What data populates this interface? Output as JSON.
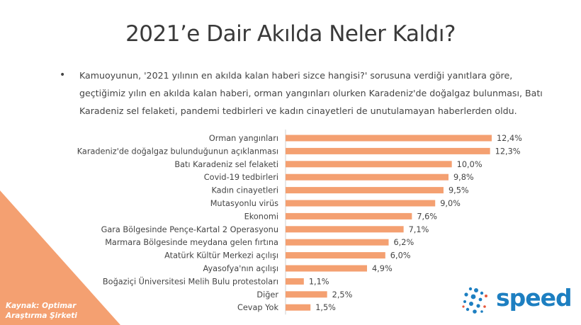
{
  "title": "2021’e Dair Akılda Neler Kaldı?",
  "bullet": "Kamuoyunun, '2021 yılının en akılda kalan haberi sizce hangisi?' sorusuna verdiği yanıtlara göre, geçtiğimiz yılın en akılda kalan haberi, orman yangınları olurken Karadeniz'de doğalgaz bulunması, Batı Karadeniz sel felaketi, pandemi tedbirleri ve kadın cinayetleri de unutulamayan haberlerden oldu.",
  "source_line1": "Kaynak: Optimar",
  "source_line2": "Araştırma Şirketi",
  "logo_text": "speed",
  "colors": {
    "bar": "#f4a071",
    "corner": "#f4a071",
    "logo": "#1d7fc1"
  },
  "chart_data": {
    "type": "bar",
    "orientation": "horizontal",
    "categories": [
      "Orman yangınları",
      "Karadeniz'de doğalgaz bulunduğunun açıklanması",
      "Batı Karadeniz sel felaketi",
      "Covid-19 tedbirleri",
      "Kadın cinayetleri",
      "Mutasyonlu virüs",
      "Ekonomi",
      "Gara Bölgesinde Pençe-Kartal 2 Operasyonu",
      "Marmara Bölgesinde meydana gelen fırtına",
      "Atatürk Kültür Merkezi açılışı",
      "Ayasofya'nın açılışı",
      "Boğaziçi Üniversitesi Melih Bulu protestoları",
      "Diğer",
      "Cevap Yok"
    ],
    "values": [
      12.4,
      12.3,
      10.0,
      9.8,
      9.5,
      9.0,
      7.6,
      7.1,
      6.2,
      6.0,
      4.9,
      1.1,
      2.5,
      1.5
    ],
    "value_labels": [
      "12,4%",
      "12,3%",
      "10,0%",
      "9,8%",
      "9,5%",
      "9,0%",
      "7,6%",
      "7,1%",
      "6,2%",
      "6,0%",
      "4,9%",
      "1,1%",
      "2,5%",
      "1,5%"
    ],
    "xlim": [
      0,
      12.4
    ],
    "grid": false
  }
}
